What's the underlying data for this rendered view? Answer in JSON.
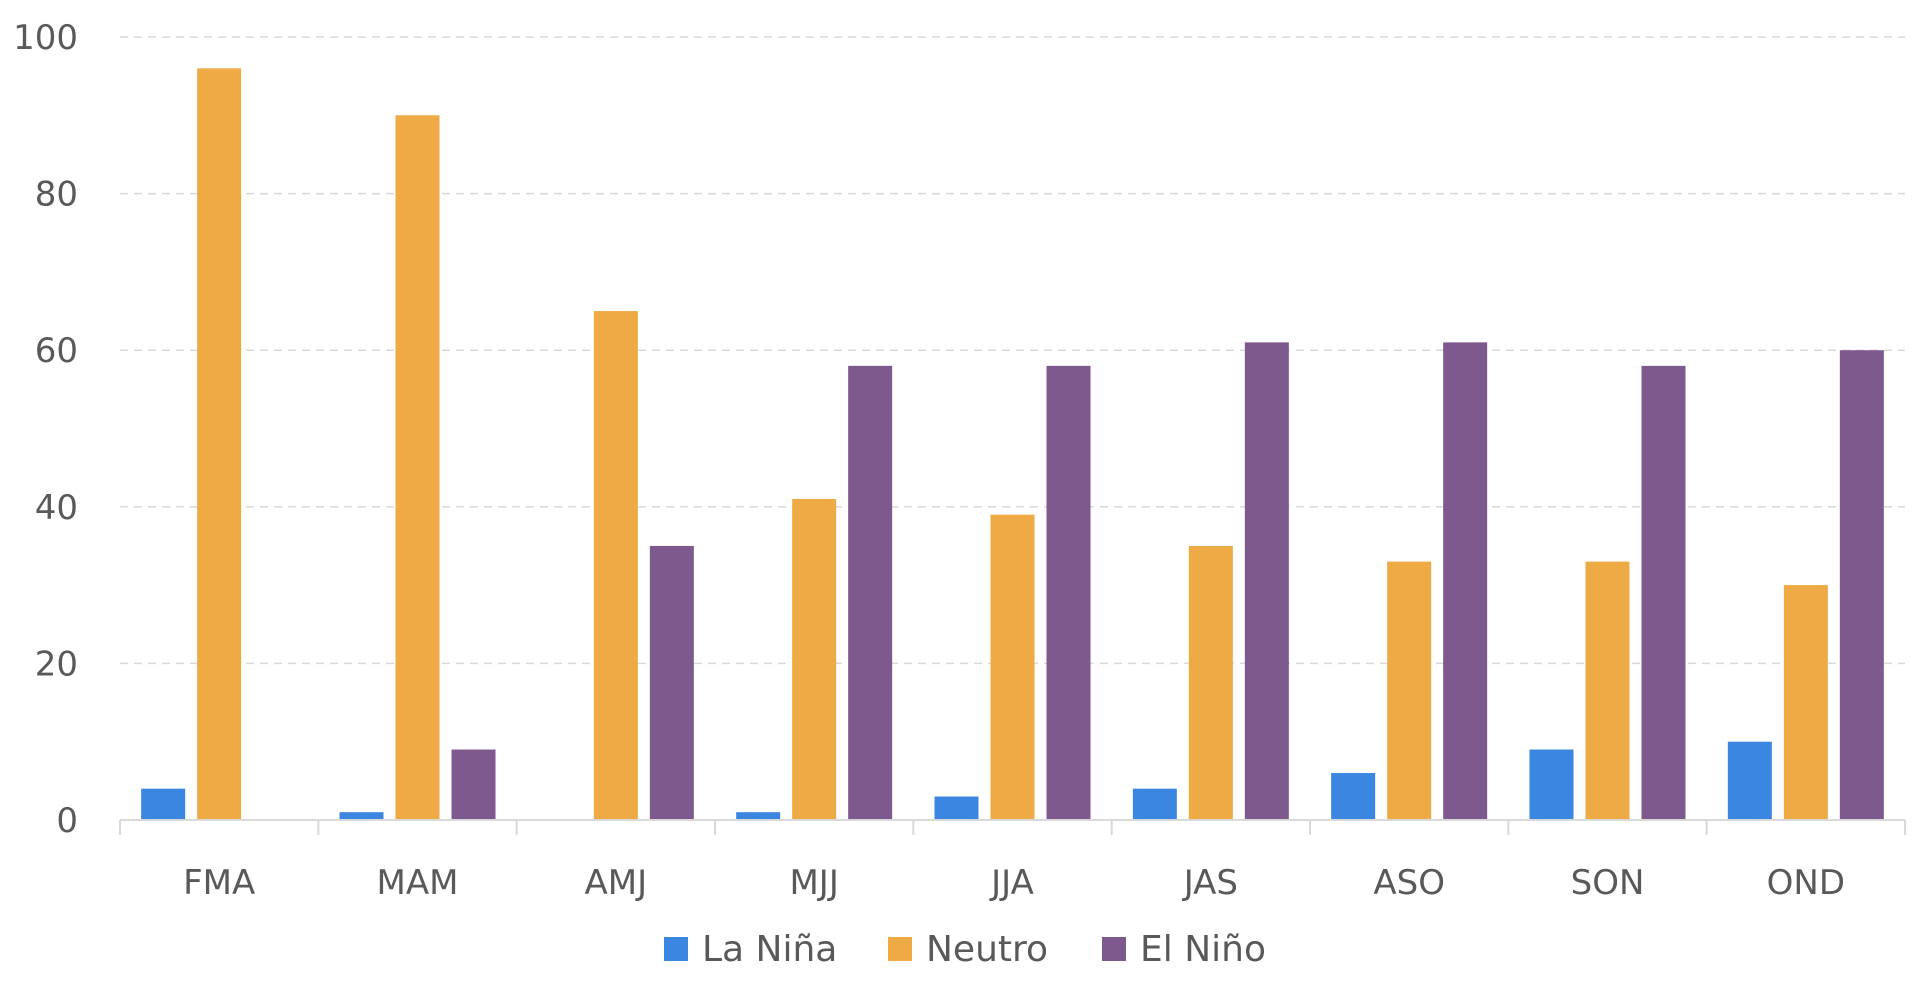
{
  "chart_data": {
    "type": "bar",
    "categories": [
      "FMA",
      "MAM",
      "AMJ",
      "MJJ",
      "JJA",
      "JAS",
      "ASO",
      "SON",
      "OND"
    ],
    "series": [
      {
        "name": "La Niña",
        "color": "#3b86e0",
        "values": [
          4,
          1,
          0,
          1,
          3,
          4,
          6,
          9,
          10
        ]
      },
      {
        "name": "Neutro",
        "color": "#eeaa45",
        "values": [
          96,
          90,
          65,
          41,
          39,
          35,
          33,
          33,
          30
        ]
      },
      {
        "name": "El Niño",
        "color": "#7e598d",
        "values": [
          0,
          9,
          35,
          58,
          58,
          61,
          61,
          58,
          60
        ]
      }
    ],
    "ylim": [
      0,
      100
    ],
    "yticks": [
      "0",
      "20",
      "40",
      "60",
      "80",
      "100"
    ],
    "grid": "horizontal dashed",
    "legend_position": "bottom"
  }
}
